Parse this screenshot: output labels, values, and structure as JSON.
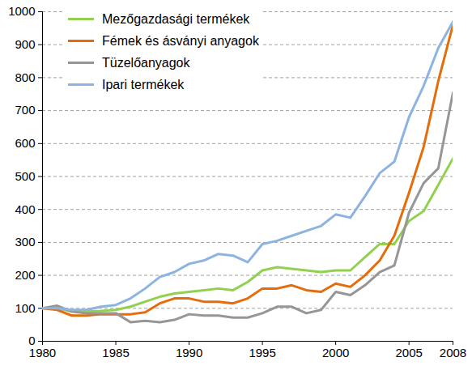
{
  "chart_data": {
    "type": "line",
    "x": [
      1980,
      1981,
      1982,
      1983,
      1984,
      1985,
      1986,
      1987,
      1988,
      1989,
      1990,
      1991,
      1992,
      1993,
      1994,
      1995,
      1996,
      1997,
      1998,
      1999,
      2000,
      2001,
      2002,
      2003,
      2004,
      2005,
      2006,
      2007,
      2008
    ],
    "series": [
      {
        "name": "Mezőgazdasági termékek",
        "color": "#92d050",
        "values": [
          100,
          100,
          90,
          90,
          92,
          95,
          105,
          120,
          135,
          145,
          150,
          155,
          160,
          155,
          180,
          215,
          225,
          220,
          215,
          210,
          215,
          215,
          255,
          295,
          295,
          365,
          395,
          475,
          555
        ]
      },
      {
        "name": "Fémek és ásványi anyagok",
        "color": "#e46c0a",
        "values": [
          100,
          95,
          78,
          78,
          82,
          82,
          82,
          88,
          115,
          130,
          130,
          120,
          120,
          115,
          130,
          160,
          160,
          170,
          155,
          150,
          175,
          165,
          200,
          245,
          320,
          450,
          590,
          790,
          960
        ]
      },
      {
        "name": "Tüzelőanyagok",
        "color": "#969696",
        "values": [
          100,
          108,
          90,
          85,
          85,
          85,
          58,
          62,
          58,
          65,
          82,
          78,
          78,
          72,
          72,
          85,
          105,
          105,
          85,
          95,
          150,
          140,
          170,
          210,
          230,
          390,
          480,
          525,
          755
        ]
      },
      {
        "name": "Ipari termékek",
        "color": "#8db3e2",
        "values": [
          100,
          100,
          95,
          95,
          105,
          110,
          130,
          160,
          195,
          210,
          235,
          245,
          265,
          260,
          240,
          295,
          305,
          320,
          335,
          350,
          385,
          375,
          440,
          510,
          545,
          680,
          775,
          890,
          970
        ]
      }
    ],
    "xlim": [
      1980,
      2008
    ],
    "xticks": [
      1980,
      1985,
      1990,
      1995,
      2000,
      2005,
      2008
    ],
    "ylim": [
      0,
      1000
    ],
    "yticks": [
      0,
      100,
      200,
      300,
      400,
      500,
      600,
      700,
      800,
      900,
      1000
    ],
    "grid": true,
    "legend": "upper left"
  }
}
